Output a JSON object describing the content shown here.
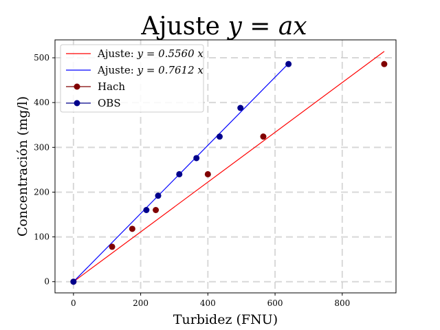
{
  "chart_data": {
    "type": "scatter",
    "title": "Ajuste ",
    "title_math": "y = ax",
    "xlabel": "Turbidez (FNU)",
    "ylabel": "Concentración (mg/l)",
    "xlim": [
      -55,
      960
    ],
    "ylim": [
      -25,
      540
    ],
    "xticks": [
      0,
      200,
      400,
      600,
      800
    ],
    "yticks": [
      0,
      100,
      200,
      300,
      400,
      500
    ],
    "grid": true,
    "legend_position": "top-left",
    "fits": [
      {
        "label": "Ajuste: ",
        "equation": "y = 0.5560 x",
        "slope": 0.556,
        "x_range": [
          0,
          925
        ],
        "color": "#ff0000"
      },
      {
        "label": "Ajuste: ",
        "equation": "y = 0.7612 x",
        "slope": 0.7612,
        "x_range": [
          0,
          640
        ],
        "color": "#0000ff"
      }
    ],
    "series": [
      {
        "name": "Hach",
        "color": "#800000",
        "x": [
          0,
          115,
          175,
          245,
          400,
          565,
          925
        ],
        "y": [
          0,
          78,
          118,
          160,
          240,
          324,
          486
        ]
      },
      {
        "name": "OBS",
        "color": "#00008b",
        "x": [
          0,
          217,
          252,
          315,
          366,
          435,
          497,
          640
        ],
        "y": [
          0,
          160,
          192,
          240,
          276,
          324,
          388,
          486
        ]
      }
    ]
  }
}
